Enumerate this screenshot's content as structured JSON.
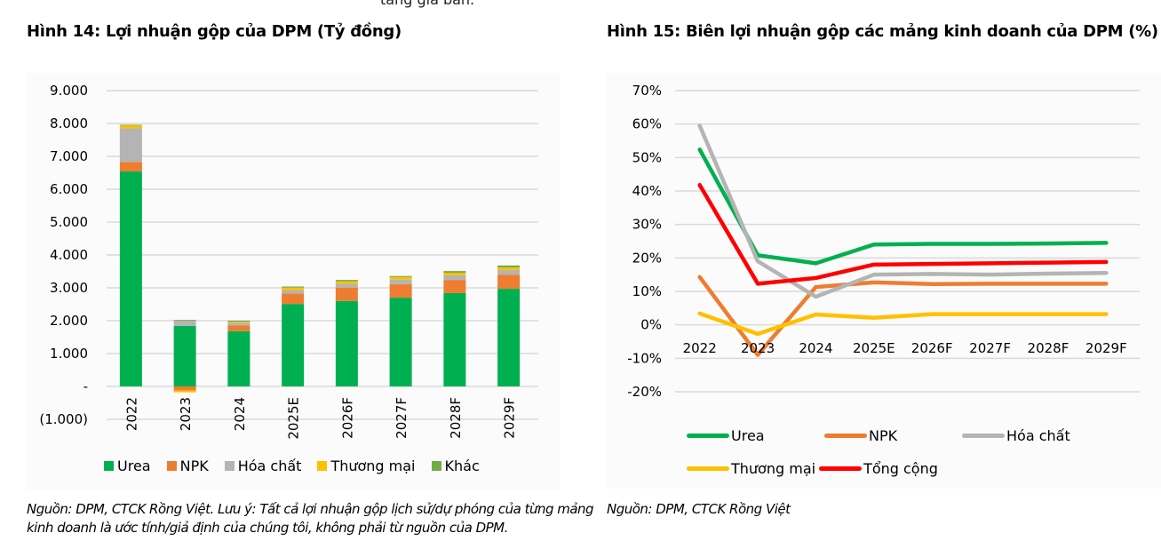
{
  "page": {
    "top_text_fragment": "tăng giá bán."
  },
  "chart_data": [
    {
      "type": "bar",
      "stacked": true,
      "title": "Hình 14: Lợi nhuận gộp của DPM (Tỷ đồng)",
      "xlabel": "",
      "ylabel": "",
      "categories": [
        "2022",
        "2023",
        "2024",
        "2025E",
        "2026F",
        "2027F",
        "2028F",
        "2029F"
      ],
      "ylim": [
        -1000,
        9000
      ],
      "yticks": [
        -1000,
        0,
        1000,
        2000,
        3000,
        4000,
        5000,
        6000,
        7000,
        8000,
        9000
      ],
      "ytick_labels": [
        "(1.000)",
        "-",
        "1.000",
        "2.000",
        "3.000",
        "4.000",
        "5.000",
        "6.000",
        "7.000",
        "8.000",
        "9.000"
      ],
      "grid": true,
      "legend_position": "bottom",
      "series": [
        {
          "name": "Urea",
          "color": "#00B050",
          "values": [
            6540,
            1840,
            1680,
            2510,
            2600,
            2700,
            2840,
            2970
          ]
        },
        {
          "name": "NPK",
          "color": "#ED7D31",
          "values": [
            290,
            -120,
            180,
            320,
            400,
            410,
            400,
            430
          ]
        },
        {
          "name": "Hóa chất",
          "color": "#B4B4B4",
          "values": [
            1020,
            170,
            80,
            100,
            120,
            140,
            140,
            140
          ]
        },
        {
          "name": "Thương mại",
          "color": "#FFC000",
          "values": [
            90,
            -60,
            30,
            80,
            80,
            80,
            80,
            80
          ]
        },
        {
          "name": "Khác",
          "color": "#70AD47",
          "values": [
            20,
            15,
            30,
            30,
            40,
            30,
            50,
            60
          ]
        }
      ],
      "footnote": "Nguồn: DPM, CTCK Rồng Việt. Lưu ý: Tất cả lợi nhuận gộp lịch sử/dự phóng của từng mảng kinh doanh là ước tính/giả định của chúng tôi, không phải từ nguồn của DPM."
    },
    {
      "type": "line",
      "title": "Hình 15: Biên lợi nhuận gộp các mảng kinh doanh của DPM (%)",
      "xlabel": "",
      "ylabel": "",
      "x": [
        "2022",
        "2023",
        "2024",
        "2025E",
        "2026F",
        "2027F",
        "2028F",
        "2029F"
      ],
      "ylim": [
        -20,
        70
      ],
      "yticks": [
        -20,
        -10,
        0,
        10,
        20,
        30,
        40,
        50,
        60,
        70
      ],
      "ytick_labels": [
        "-20%",
        "-10%",
        "0%",
        "10%",
        "20%",
        "30%",
        "40%",
        "50%",
        "60%",
        "70%"
      ],
      "grid": true,
      "legend_position": "bottom",
      "series": [
        {
          "name": "Urea",
          "color": "#00B050",
          "values": [
            52.4,
            20.8,
            18.4,
            24.0,
            24.2,
            24.2,
            24.3,
            24.5
          ]
        },
        {
          "name": "NPK",
          "color": "#ED7D31",
          "values": [
            14.3,
            -9.0,
            11.3,
            12.7,
            12.2,
            12.3,
            12.3,
            12.3
          ]
        },
        {
          "name": "Hóa chất",
          "color": "#B4B4B4",
          "values": [
            59.5,
            19.0,
            8.4,
            15.0,
            15.2,
            15.0,
            15.3,
            15.5
          ]
        },
        {
          "name": "Thương mại",
          "color": "#FFC000",
          "values": [
            3.4,
            -2.7,
            3.1,
            2.1,
            3.2,
            3.2,
            3.2,
            3.2
          ]
        },
        {
          "name": "Tổng cộng",
          "color": "#FF0000",
          "values": [
            41.8,
            12.3,
            14.0,
            18.0,
            18.2,
            18.4,
            18.6,
            18.8
          ]
        }
      ],
      "footnote": "Nguồn: DPM, CTCK Rồng Việt"
    }
  ]
}
